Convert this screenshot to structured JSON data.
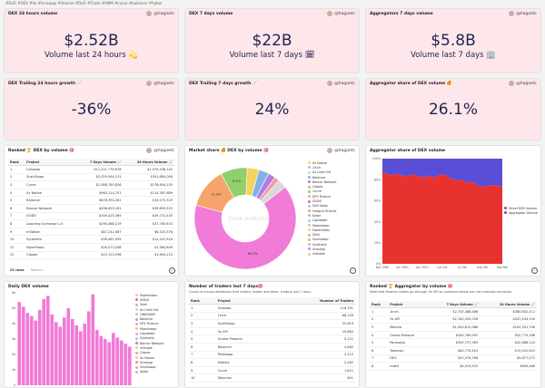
{
  "tags": "#DeFi #DEX #dx #Uniswap #Volume #DeFi #Trade #AMM #curve #balancer #hyber",
  "kpis": [
    {
      "title": "DEX 24 hours volume",
      "author": "@hagaetc",
      "value": "$2.52B",
      "sub": "Volume last 24 hours 💫"
    },
    {
      "title": "DEX 7 days volume",
      "author": "@hagaetc",
      "value": "$22B",
      "sub": "Volume last 7 days 🗓"
    },
    {
      "title": "Aggregators 7 days volume",
      "author": "@hagaetc",
      "value": "$5.8B",
      "sub": "Volume last 7 days 🏢"
    },
    {
      "title": "DEX Trailing 24 hours growth 📈",
      "author": "@hagaetc",
      "value": "-36%",
      "sub": ""
    },
    {
      "title": "DEX Trailing 7 days growth 📈",
      "author": "@hagaetc",
      "value": "24%",
      "sub": ""
    },
    {
      "title": "Aggregator share of DEX volume 🍊",
      "author": "@hagaetc",
      "value": "26.1%",
      "sub": ""
    }
  ],
  "ranked": {
    "title": "Ranked 🏆 DEX by volume 🎯",
    "author": "@hagaetc",
    "headers": [
      "Rank",
      "Project",
      "7 Days Volume 📈",
      "24 Hours Volume 📈"
    ],
    "rows": [
      [
        "1",
        "Uniswap",
        "$11,211,776,678",
        "$1,979,438,142"
      ],
      [
        "2",
        "SushiSwap",
        "$2,029,994,131",
        "$301,884,048"
      ],
      [
        "3",
        "Curve",
        "$1,088,785,826",
        "$176,804,155"
      ],
      [
        "4",
        "0x Native",
        "$963,114,751",
        "$114,387,689"
      ],
      [
        "5",
        "Balancer",
        "$878,390,261",
        "$19,073,329"
      ],
      [
        "6",
        "Bancor Network",
        "$496,625,181",
        "$39,659,523"
      ],
      [
        "7",
        "DODO",
        "$359,425,389",
        "$49,731,435"
      ],
      [
        "8",
        "Loopring Exchange 1.0",
        "$290,488,219",
        "$37,765,610"
      ],
      [
        "9",
        "mStable",
        "$87,242,087",
        "$6,325,378"
      ],
      [
        "10",
        "Synthetix",
        "$38,461,935",
        "$12,441,544"
      ],
      [
        "11",
        "KyberSwap",
        "$26,573,208",
        "$1,964,846"
      ],
      [
        "12",
        "Clipper",
        "$15,123,296",
        "$1,694,115"
      ]
    ],
    "footer": "22 rows",
    "search": "Search..."
  },
  "market_share": {
    "title": "Market share 🍊 DEX by volume 🎯",
    "author": "@hagaetc",
    "watermark": "Dune Analytics",
    "chart_data": {
      "type": "pie",
      "categories": [
        "Uniswap",
        "SushiSwap",
        "Curve",
        "0x Native",
        "Balancer",
        "Bancor Network",
        "DODO",
        "Other"
      ],
      "values": [
        64.9,
        12.9,
        8.5,
        3.8,
        3.2,
        2.3,
        1.6,
        2.8
      ],
      "colors": [
        "#f17bd6",
        "#f5a56b",
        "#8fd06a",
        "#f4d35e",
        "#7fb3e8",
        "#b27be8",
        "#f09ba9",
        "#d8d8d8"
      ],
      "slice_labels": [
        "64.9%",
        "12.9%",
        "8.5%",
        "",
        "",
        "",
        "",
        ""
      ]
    },
    "legend": [
      "0x Native",
      "1inch",
      "0x Limit Ord",
      "Balancer",
      "Bancor Network",
      "Clipper",
      "Curve",
      "DFX Finance",
      "DODO",
      "Defi Swap",
      "Integral Finance",
      "Kyber",
      "Liquidator",
      "Mooniswap",
      "PowerIndex",
      "Shell",
      "Sushiswap",
      "Synthetix",
      "Uniswap",
      "mStable"
    ],
    "legend_colors": [
      "#f4d35e",
      "#c9a9f3",
      "#bfe5b4",
      "#7fb3e8",
      "#b27be8",
      "#f09ba9",
      "#8fd06a",
      "#e8b27b",
      "#e06b8f",
      "#9fd6d6",
      "#f5a56b",
      "#d7a2e2",
      "#a8c9f0",
      "#f0c987",
      "#c5e39e",
      "#e6a0c4",
      "#f5a56b",
      "#9bd4c1",
      "#f17bd6",
      "#e7d36b"
    ]
  },
  "agg_share": {
    "title": "Aggregator share of DEX volume",
    "chart_data": {
      "type": "area",
      "x": [
        "Dec 29th",
        "Jan 5th",
        "Jan 12th",
        "Jan 19th",
        "Jan 26th",
        "Feb 2nd",
        "Feb 9th",
        "Feb 16th",
        "Feb 23rd",
        "Mar 2nd",
        "Mar 9th",
        "Mar 16th",
        "Mar 23rd",
        "Mar 30th",
        "Apr 6th",
        "Apr 13th",
        "Apr 20th",
        "Apr 27th",
        "May 4th",
        "May 11th",
        "May 18th",
        "May 25th",
        "Jun 1st",
        "Jun 8th",
        "Jun 15th",
        "Jun 22nd",
        "Jun 29th",
        "Jul 6th",
        "Jul 13th",
        "Jul 20th",
        "Jul 27th",
        "Aug 3rd",
        "Aug 10th",
        "Aug 17th",
        "Aug 24th",
        "Aug 31st",
        "Sep 7th"
      ],
      "x_ticks": [
        "Dec 29th",
        "Jan 26th",
        "Jan 2021",
        "Jun 1st",
        "Jul 5th",
        "Aug 5th",
        "Sep 6th"
      ],
      "ylim": [
        0,
        100
      ],
      "y_ticks": [
        "0%",
        "20%",
        "40%",
        "60%",
        "80%",
        "100%"
      ],
      "series": [
        {
          "name": "Direct DEX Volume",
          "color": "#e8322f",
          "values": [
            88,
            86,
            85,
            84,
            86,
            85,
            84,
            83,
            84,
            85,
            84,
            83,
            82,
            83,
            84,
            82,
            83,
            84,
            85,
            84,
            82,
            81,
            80,
            79,
            80,
            78,
            77,
            78,
            76,
            74,
            73,
            74,
            75,
            74,
            75,
            74,
            74
          ]
        },
        {
          "name": "Aggregator Volume",
          "color": "#5b4ed6",
          "values": [
            12,
            14,
            15,
            16,
            14,
            15,
            16,
            17,
            16,
            15,
            16,
            17,
            18,
            17,
            16,
            18,
            17,
            16,
            15,
            16,
            18,
            19,
            20,
            21,
            20,
            22,
            23,
            22,
            24,
            26,
            27,
            26,
            25,
            26,
            25,
            26,
            26
          ]
        }
      ]
    }
  },
  "daily": {
    "title": "Daily DEX volume",
    "chart_data": {
      "type": "bar",
      "y_ticks": [
        "0",
        "1b",
        "2b",
        "3b",
        "4b",
        "5b",
        "6b"
      ],
      "ylim": [
        0,
        6
      ],
      "values": [
        5.4,
        5.1,
        4.7,
        4.5,
        4.2,
        4.9,
        5.6,
        5.8,
        4.6,
        4.1,
        3.8,
        4.4,
        5.0,
        4.3,
        3.9,
        3.5,
        4.0,
        4.8,
        5.9,
        3.6,
        3.2,
        3.0,
        2.8,
        3.4,
        3.1,
        2.9,
        2.7,
        2.5
      ],
      "color": "#f17bd6"
    },
    "legend": [
      "PowerIndex",
      "DODO",
      "Shell",
      "0x Limit Ord",
      "LINKSWAP",
      "Balancer",
      "DFX Finance",
      "Mooniswap",
      "Liquidator",
      "Synthetix",
      "Bancor Network",
      "mStable",
      "Clipper",
      "0x Native",
      "Uniswap",
      "Sushiswap",
      "Kyber"
    ],
    "legend_colors": [
      "#f0c987",
      "#e06b8f",
      "#e6a0c4",
      "#bfe5b4",
      "#f3b3b3",
      "#7fb3e8",
      "#e8b27b",
      "#f0c987",
      "#d7a2e2",
      "#9bd4c1",
      "#b27be8",
      "#e7d36b",
      "#f09ba9",
      "#f4d35e",
      "#f17bd6",
      "#f5a56b",
      "#c9a9f3"
    ]
  },
  "traders": {
    "title": "Number of traders last 7 days🎯",
    "sub": "Count of unique addresses that traded, maker and taker, trading last 7 days.",
    "headers": [
      "Rank",
      "Project",
      "Number of Traders"
    ],
    "rows": [
      [
        "1",
        "Uniswap",
        "116,331"
      ],
      [
        "2",
        "1inch",
        "66,139"
      ],
      [
        "3",
        "SushiSwap",
        "32,819"
      ],
      [
        "4",
        "0x API",
        "19,863"
      ],
      [
        "5",
        "Gnosis Protocol",
        "5,121"
      ],
      [
        "6",
        "Balancer",
        "4,982"
      ],
      [
        "7",
        "Paraswap",
        "3,123"
      ],
      [
        "8",
        "Matcha",
        "2,282"
      ],
      [
        "9",
        "Curve",
        "1,811"
      ],
      [
        "10",
        "Tokenlon",
        "841"
      ]
    ]
  },
  "aggregators": {
    "title": "Ranked 🏆 Aggregator by volume 🎯",
    "sub": "Note that Matcha makes go through 0x API so numbers below are not mutually exclusive.",
    "headers": [
      "Rank",
      "Project",
      "7 Days Volume 📈",
      "24 Hours Volume 📈"
    ],
    "rows": [
      [
        "1",
        "1inch",
        "$2,743,488,486",
        "$380,602,412"
      ],
      [
        "2",
        "0x API",
        "$2,140,430,326",
        "$247,434,126"
      ],
      [
        "3",
        "Matcha",
        "$1,050,612,086",
        "$102,501,746"
      ],
      [
        "4",
        "Gnosis Protocol",
        "$440,769,092",
        "$52,779,168"
      ],
      [
        "5",
        "Paraswap",
        "$300,737,363",
        "$42,888,110"
      ],
      [
        "6",
        "Tokenlon",
        "$84,770,401",
        "$13,402,003"
      ],
      [
        "7",
        "DEX",
        "$20,478,766",
        "$3,877,272"
      ],
      [
        "8",
        "mistX",
        "$4,019,910",
        "$699,466"
      ]
    ]
  }
}
